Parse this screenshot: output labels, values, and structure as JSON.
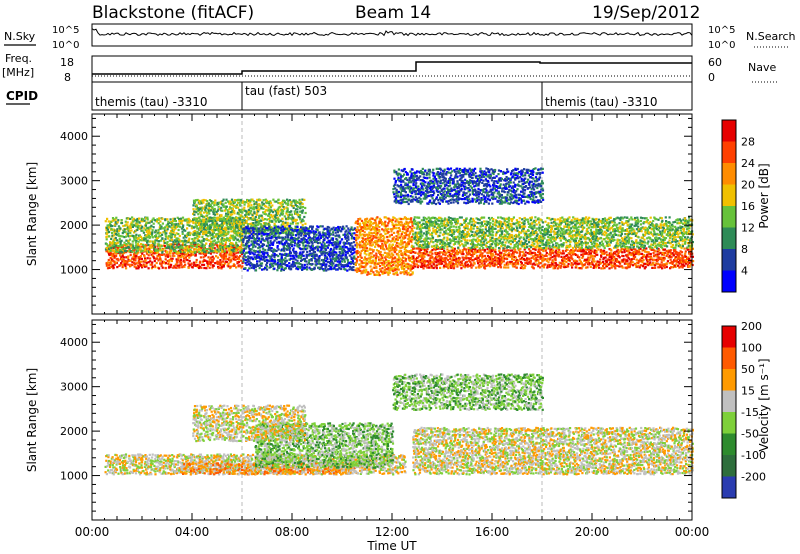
{
  "header": {
    "station": "Blackstone (fitACF)",
    "beam": "Beam 14",
    "date": "19/Sep/2012"
  },
  "noise_panel": {
    "left_label": "N.Sky",
    "right_label": "N.Search",
    "tick_top": "10^5",
    "tick_bottom": "10^0"
  },
  "freq_panel": {
    "left_label_1": "Freq.",
    "left_label_2": "[MHz]",
    "right_label": "Nave",
    "left_ticks": [
      "18",
      "8"
    ],
    "right_ticks": [
      "60",
      "0"
    ]
  },
  "cpid_panel": {
    "label": "CPID",
    "segments": [
      {
        "text": "themis (tau) -3310",
        "start_hour": 0
      },
      {
        "text": "tau (fast) 503",
        "start_hour": 6
      },
      {
        "text": "themis (tau) -3310",
        "start_hour": 18
      }
    ]
  },
  "colors": {
    "power_scale": [
      "#0000ff",
      "#1e3ca0",
      "#2e8b57",
      "#66c23a",
      "#f0c000",
      "#ff8c00",
      "#ff4000",
      "#e60000"
    ],
    "velocity_scale": [
      "#2a3cb0",
      "#2e6e3c",
      "#2e8b2e",
      "#7ed03a",
      "#c0c0c0",
      "#ff9a00",
      "#ff5a00",
      "#e60000"
    ]
  },
  "chart_data": [
    {
      "type": "heatmap",
      "name": "power",
      "ylabel": "Slant Range [km]",
      "colorbar_label": "Power [dB]",
      "colorbar_ticks": [
        "4",
        "8",
        "12",
        "16",
        "20",
        "24",
        "28"
      ],
      "ylim": [
        0,
        4500
      ],
      "yticks": [
        1000,
        2000,
        3000,
        4000
      ],
      "xlim": [
        0,
        24
      ],
      "bands": [
        {
          "t": [
            0.5,
            6.0
          ],
          "r": [
            1050,
            1600
          ],
          "level": 6
        },
        {
          "t": [
            0.5,
            6.0
          ],
          "r": [
            1400,
            2200
          ],
          "level": 3
        },
        {
          "t": [
            4.0,
            8.5
          ],
          "r": [
            1800,
            2600
          ],
          "level": 3
        },
        {
          "t": [
            6.0,
            10.5
          ],
          "r": [
            1000,
            2000
          ],
          "level": 1
        },
        {
          "t": [
            10.5,
            12.8
          ],
          "r": [
            900,
            2200
          ],
          "level": 5
        },
        {
          "t": [
            12.8,
            24.0
          ],
          "r": [
            1050,
            1500
          ],
          "level": 6
        },
        {
          "t": [
            12.8,
            24.0
          ],
          "r": [
            1500,
            2200
          ],
          "level": 3
        },
        {
          "t": [
            12.0,
            18.0
          ],
          "r": [
            2500,
            3300
          ],
          "level": 1
        }
      ]
    },
    {
      "type": "heatmap",
      "name": "velocity",
      "ylabel": "Slant Range [km]",
      "colorbar_label": "Velocity [m s⁻¹]",
      "colorbar_ticks": [
        "-200",
        "-100",
        "-50",
        "-15",
        "15",
        "50",
        "100",
        "200"
      ],
      "ylim": [
        0,
        4500
      ],
      "yticks": [
        1000,
        2000,
        3000,
        4000
      ],
      "xlim": [
        0,
        24
      ],
      "xlabel": "Time UT",
      "xticks": [
        "00:00",
        "04:00",
        "08:00",
        "12:00",
        "16:00",
        "20:00",
        "00:00"
      ],
      "bands": [
        {
          "t": [
            0.5,
            12.5
          ],
          "r": [
            1050,
            1500
          ],
          "level": 4
        },
        {
          "t": [
            3.5,
            10.5
          ],
          "r": [
            1050,
            1300
          ],
          "level": 5
        },
        {
          "t": [
            6.5,
            12.0
          ],
          "r": [
            1200,
            2200
          ],
          "level": 3
        },
        {
          "t": [
            4.0,
            8.5
          ],
          "r": [
            1800,
            2600
          ],
          "level": 4
        },
        {
          "t": [
            12.8,
            24.0
          ],
          "r": [
            1050,
            2100
          ],
          "level": 4
        },
        {
          "t": [
            12.0,
            18.0
          ],
          "r": [
            2500,
            3300
          ],
          "level": 3
        }
      ]
    }
  ]
}
